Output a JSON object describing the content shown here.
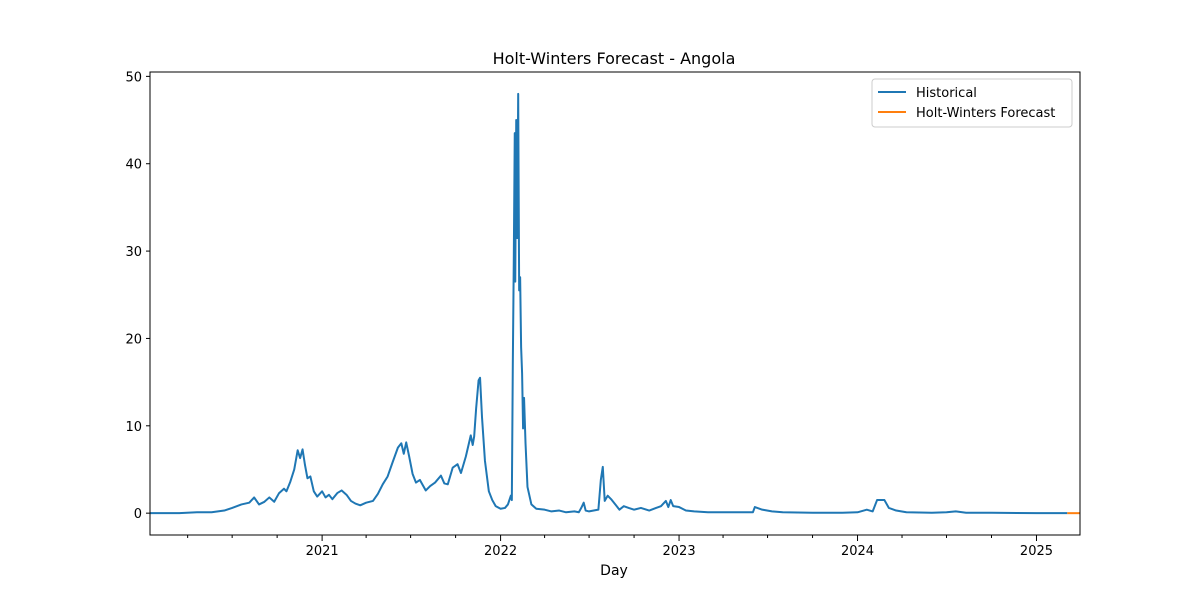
{
  "chart_data": {
    "type": "line",
    "title": "Holt-Winters Forecast - Angola",
    "xlabel": "Day",
    "ylabel": "",
    "xlim": [
      "2020-01-15",
      "2025-03-31"
    ],
    "ylim": [
      -2.5,
      50.5
    ],
    "y_ticks": [
      0,
      10,
      20,
      30,
      40,
      50
    ],
    "x_ticks": [
      {
        "date": "2021-01-01",
        "label": "2021"
      },
      {
        "date": "2022-01-01",
        "label": "2022"
      },
      {
        "date": "2023-01-01",
        "label": "2023"
      },
      {
        "date": "2024-01-01",
        "label": "2024"
      },
      {
        "date": "2025-01-01",
        "label": "2025"
      }
    ],
    "x_minor_ticks": [
      "2020-04-01",
      "2020-07-01",
      "2020-10-01",
      "2021-04-01",
      "2021-07-01",
      "2021-10-01",
      "2022-04-01",
      "2022-07-01",
      "2022-10-01",
      "2023-04-01",
      "2023-07-01",
      "2023-10-01",
      "2024-04-01",
      "2024-07-01",
      "2024-10-01"
    ],
    "grid": false,
    "legend": "upper right",
    "series": [
      {
        "name": "Historical",
        "color": "#1f77b4",
        "points": [
          [
            "2020-01-15",
            0
          ],
          [
            "2020-03-15",
            0
          ],
          [
            "2020-04-20",
            0.1
          ],
          [
            "2020-05-20",
            0.1
          ],
          [
            "2020-06-15",
            0.3
          ],
          [
            "2020-07-01",
            0.6
          ],
          [
            "2020-07-20",
            1.0
          ],
          [
            "2020-08-05",
            1.2
          ],
          [
            "2020-08-15",
            1.8
          ],
          [
            "2020-08-25",
            1.0
          ],
          [
            "2020-09-05",
            1.3
          ],
          [
            "2020-09-15",
            1.8
          ],
          [
            "2020-09-25",
            1.3
          ],
          [
            "2020-10-05",
            2.3
          ],
          [
            "2020-10-15",
            2.8
          ],
          [
            "2020-10-20",
            2.5
          ],
          [
            "2020-10-28",
            3.6
          ],
          [
            "2020-11-05",
            5.0
          ],
          [
            "2020-11-12",
            7.2
          ],
          [
            "2020-11-17",
            6.3
          ],
          [
            "2020-11-22",
            7.3
          ],
          [
            "2020-11-27",
            5.5
          ],
          [
            "2020-12-02",
            4.0
          ],
          [
            "2020-12-08",
            4.2
          ],
          [
            "2020-12-15",
            2.5
          ],
          [
            "2020-12-22",
            1.9
          ],
          [
            "2021-01-01",
            2.5
          ],
          [
            "2021-01-08",
            1.8
          ],
          [
            "2021-01-15",
            2.1
          ],
          [
            "2021-01-22",
            1.6
          ],
          [
            "2021-02-01",
            2.3
          ],
          [
            "2021-02-10",
            2.6
          ],
          [
            "2021-02-20",
            2.1
          ],
          [
            "2021-03-01",
            1.4
          ],
          [
            "2021-03-10",
            1.1
          ],
          [
            "2021-03-20",
            0.9
          ],
          [
            "2021-04-01",
            1.2
          ],
          [
            "2021-04-15",
            1.4
          ],
          [
            "2021-04-25",
            2.2
          ],
          [
            "2021-05-05",
            3.3
          ],
          [
            "2021-05-15",
            4.2
          ],
          [
            "2021-05-25",
            5.8
          ],
          [
            "2021-06-05",
            7.5
          ],
          [
            "2021-06-12",
            8.0
          ],
          [
            "2021-06-17",
            6.8
          ],
          [
            "2021-06-22",
            8.1
          ],
          [
            "2021-06-28",
            6.5
          ],
          [
            "2021-07-05",
            4.5
          ],
          [
            "2021-07-12",
            3.5
          ],
          [
            "2021-07-20",
            3.8
          ],
          [
            "2021-08-01",
            2.6
          ],
          [
            "2021-08-10",
            3.1
          ],
          [
            "2021-08-20",
            3.5
          ],
          [
            "2021-09-01",
            4.3
          ],
          [
            "2021-09-08",
            3.4
          ],
          [
            "2021-09-15",
            3.3
          ],
          [
            "2021-09-25",
            5.2
          ],
          [
            "2021-10-05",
            5.6
          ],
          [
            "2021-10-12",
            4.6
          ],
          [
            "2021-10-22",
            6.5
          ],
          [
            "2021-11-01",
            8.9
          ],
          [
            "2021-11-05",
            7.8
          ],
          [
            "2021-11-08",
            8.8
          ],
          [
            "2021-11-12",
            12.0
          ],
          [
            "2021-11-17",
            15.2
          ],
          [
            "2021-11-20",
            15.5
          ],
          [
            "2021-11-24",
            11.0
          ],
          [
            "2021-11-30",
            6.0
          ],
          [
            "2021-12-08",
            2.5
          ],
          [
            "2021-12-15",
            1.5
          ],
          [
            "2021-12-22",
            0.8
          ],
          [
            "2022-01-01",
            0.5
          ],
          [
            "2022-01-10",
            0.6
          ],
          [
            "2022-01-16",
            1.0
          ],
          [
            "2022-01-22",
            2.0
          ],
          [
            "2022-01-24",
            1.5
          ],
          [
            "2022-01-26",
            17.0
          ],
          [
            "2022-01-28",
            29.0
          ],
          [
            "2022-01-30",
            43.5
          ],
          [
            "2022-01-31",
            26.5
          ],
          [
            "2022-02-02",
            45.0
          ],
          [
            "2022-02-04",
            31.5
          ],
          [
            "2022-02-06",
            48.0
          ],
          [
            "2022-02-08",
            25.5
          ],
          [
            "2022-02-10",
            27.0
          ],
          [
            "2022-02-12",
            19.0
          ],
          [
            "2022-02-14",
            16.0
          ],
          [
            "2022-02-16",
            9.7
          ],
          [
            "2022-02-18",
            13.2
          ],
          [
            "2022-02-21",
            8.0
          ],
          [
            "2022-02-25",
            3.0
          ],
          [
            "2022-03-05",
            1.0
          ],
          [
            "2022-03-15",
            0.5
          ],
          [
            "2022-04-01",
            0.4
          ],
          [
            "2022-04-15",
            0.2
          ],
          [
            "2022-05-01",
            0.3
          ],
          [
            "2022-05-15",
            0.1
          ],
          [
            "2022-06-01",
            0.2
          ],
          [
            "2022-06-10",
            0.1
          ],
          [
            "2022-06-15",
            0.6
          ],
          [
            "2022-06-20",
            1.2
          ],
          [
            "2022-06-24",
            0.3
          ],
          [
            "2022-07-01",
            0.2
          ],
          [
            "2022-07-20",
            0.4
          ],
          [
            "2022-07-25",
            3.8
          ],
          [
            "2022-07-29",
            5.3
          ],
          [
            "2022-08-02",
            1.4
          ],
          [
            "2022-08-08",
            2.0
          ],
          [
            "2022-08-15",
            1.6
          ],
          [
            "2022-08-25",
            0.9
          ],
          [
            "2022-09-01",
            0.4
          ],
          [
            "2022-09-10",
            0.8
          ],
          [
            "2022-09-20",
            0.6
          ],
          [
            "2022-10-01",
            0.4
          ],
          [
            "2022-10-15",
            0.6
          ],
          [
            "2022-11-01",
            0.3
          ],
          [
            "2022-11-15",
            0.6
          ],
          [
            "2022-11-25",
            0.8
          ],
          [
            "2022-12-05",
            1.4
          ],
          [
            "2022-12-10",
            0.7
          ],
          [
            "2022-12-15",
            1.5
          ],
          [
            "2022-12-20",
            0.8
          ],
          [
            "2023-01-01",
            0.7
          ],
          [
            "2023-01-15",
            0.3
          ],
          [
            "2023-02-01",
            0.2
          ],
          [
            "2023-03-01",
            0.1
          ],
          [
            "2023-04-01",
            0.1
          ],
          [
            "2023-05-01",
            0.1
          ],
          [
            "2023-06-01",
            0.1
          ],
          [
            "2023-06-05",
            0.7
          ],
          [
            "2023-06-20",
            0.4
          ],
          [
            "2023-07-10",
            0.2
          ],
          [
            "2023-08-01",
            0.1
          ],
          [
            "2023-10-01",
            0.05
          ],
          [
            "2023-12-01",
            0.05
          ],
          [
            "2024-01-01",
            0.1
          ],
          [
            "2024-01-20",
            0.4
          ],
          [
            "2024-02-01",
            0.2
          ],
          [
            "2024-02-10",
            1.5
          ],
          [
            "2024-02-25",
            1.5
          ],
          [
            "2024-03-05",
            0.6
          ],
          [
            "2024-03-20",
            0.3
          ],
          [
            "2024-04-10",
            0.1
          ],
          [
            "2024-06-01",
            0.05
          ],
          [
            "2024-07-01",
            0.1
          ],
          [
            "2024-07-20",
            0.2
          ],
          [
            "2024-08-10",
            0.05
          ],
          [
            "2024-10-01",
            0.05
          ],
          [
            "2025-01-01",
            0.0
          ],
          [
            "2025-03-05",
            0.0
          ]
        ]
      },
      {
        "name": "Holt-Winters Forecast",
        "color": "#ff7f0e",
        "points": [
          [
            "2025-03-05",
            0.0
          ],
          [
            "2025-03-31",
            0.0
          ]
        ]
      }
    ]
  }
}
